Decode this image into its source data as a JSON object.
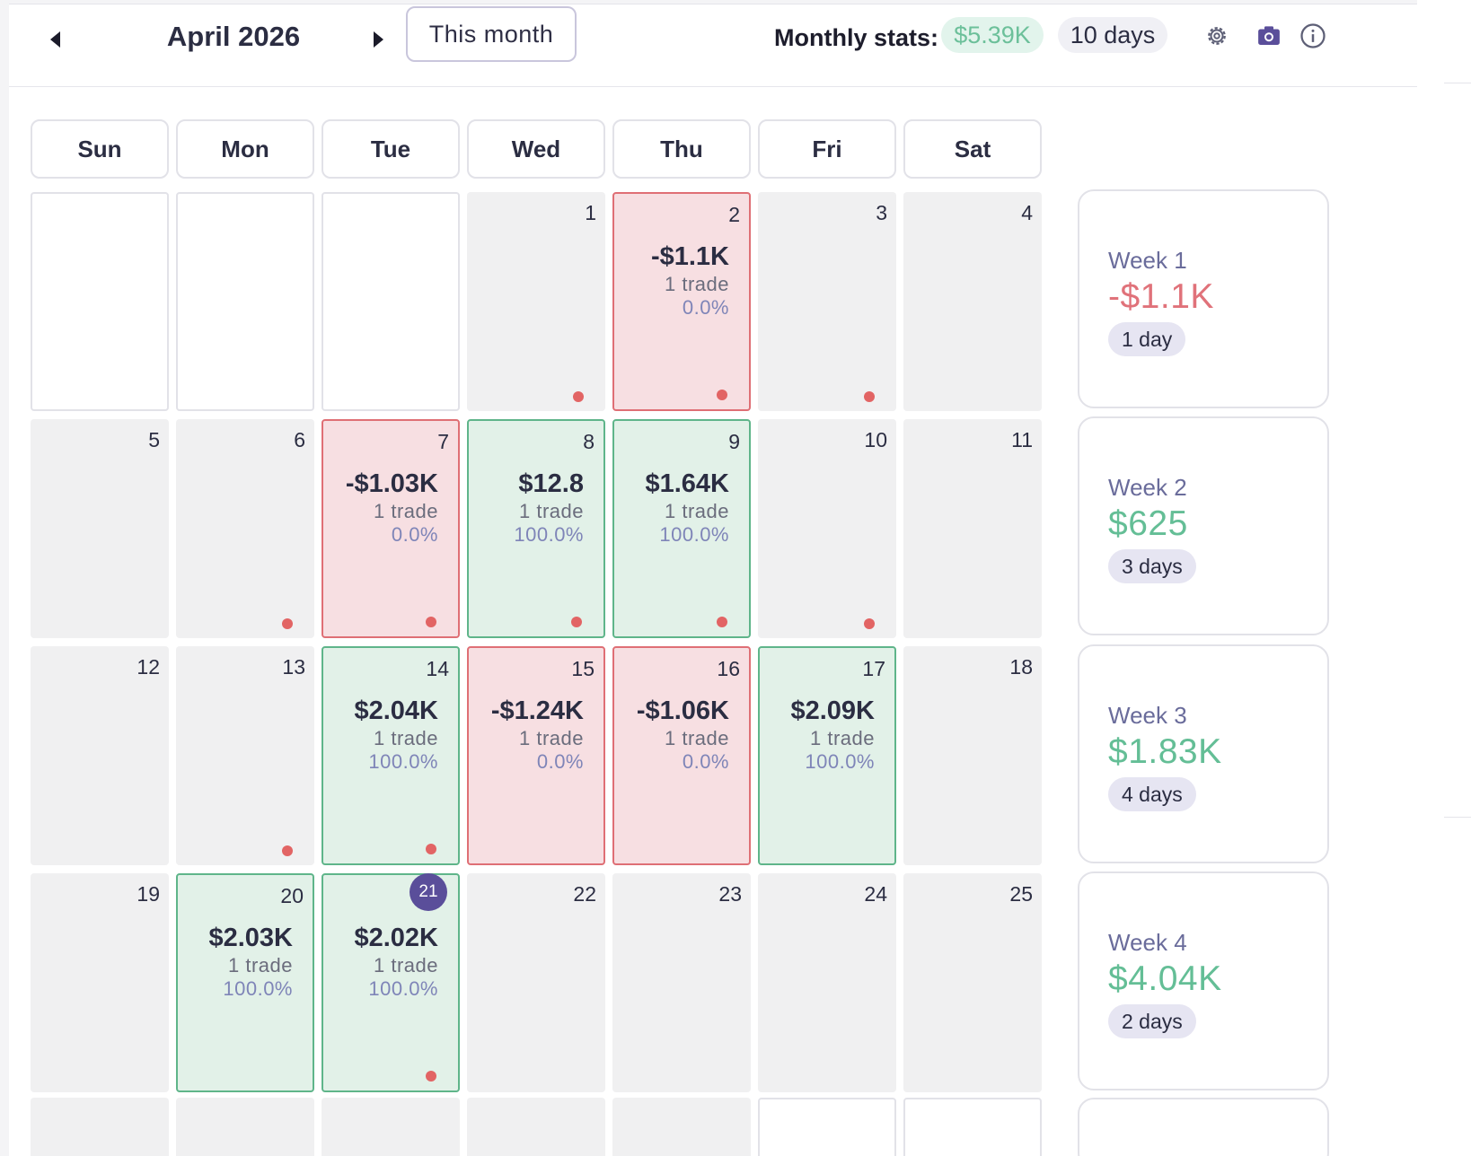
{
  "header": {
    "month_title": "April 2026",
    "this_month_label": "This month",
    "stats_label": "Monthly stats:",
    "stats_amount": "$5.39K",
    "stats_days": "10 days",
    "icons": [
      "chevron-left-icon",
      "chevron-right-icon",
      "gear-icon",
      "camera-icon",
      "info-icon"
    ]
  },
  "weekdays": [
    "Sun",
    "Mon",
    "Tue",
    "Wed",
    "Thu",
    "Fri",
    "Sat"
  ],
  "colors": {
    "loss_bg": "#f7dfe2",
    "loss_border": "#df6f75",
    "win_bg": "#e2f1e8",
    "win_border": "#5fb58a",
    "today": "#5a4e9a",
    "dot": "#e26464",
    "positive_text": "#64be96",
    "negative_text": "#e0727a"
  },
  "weeks": [
    {
      "label": "Week 1",
      "total": "-$1.1K",
      "sign": "neg",
      "days": "1 day",
      "cells": [
        {
          "type": "empty"
        },
        {
          "type": "empty"
        },
        {
          "type": "empty"
        },
        {
          "type": "none",
          "num": "1",
          "dot": true
        },
        {
          "type": "loss",
          "num": "2",
          "pnl": "-$1.1K",
          "trades": "1 trade",
          "winrate": "0.0%",
          "dot": true
        },
        {
          "type": "none",
          "num": "3",
          "dot": true
        },
        {
          "type": "none",
          "num": "4"
        }
      ]
    },
    {
      "label": "Week 2",
      "total": "$625",
      "sign": "pos",
      "days": "3 days",
      "cells": [
        {
          "type": "none",
          "num": "5"
        },
        {
          "type": "none",
          "num": "6",
          "dot": true
        },
        {
          "type": "loss",
          "num": "7",
          "pnl": "-$1.03K",
          "trades": "1 trade",
          "winrate": "0.0%",
          "dot": true
        },
        {
          "type": "win",
          "num": "8",
          "pnl": "$12.8",
          "trades": "1 trade",
          "winrate": "100.0%",
          "dot": true
        },
        {
          "type": "win",
          "num": "9",
          "pnl": "$1.64K",
          "trades": "1 trade",
          "winrate": "100.0%",
          "dot": true
        },
        {
          "type": "none",
          "num": "10",
          "dot": true
        },
        {
          "type": "none",
          "num": "11"
        }
      ]
    },
    {
      "label": "Week 3",
      "total": "$1.83K",
      "sign": "pos",
      "days": "4 days",
      "cells": [
        {
          "type": "none",
          "num": "12"
        },
        {
          "type": "none",
          "num": "13",
          "dot": true
        },
        {
          "type": "win",
          "num": "14",
          "pnl": "$2.04K",
          "trades": "1 trade",
          "winrate": "100.0%",
          "dot": true
        },
        {
          "type": "loss",
          "num": "15",
          "pnl": "-$1.24K",
          "trades": "1 trade",
          "winrate": "0.0%"
        },
        {
          "type": "loss",
          "num": "16",
          "pnl": "-$1.06K",
          "trades": "1 trade",
          "winrate": "0.0%"
        },
        {
          "type": "win",
          "num": "17",
          "pnl": "$2.09K",
          "trades": "1 trade",
          "winrate": "100.0%"
        },
        {
          "type": "none",
          "num": "18"
        }
      ]
    },
    {
      "label": "Week 4",
      "total": "$4.04K",
      "sign": "pos",
      "days": "2 days",
      "cells": [
        {
          "type": "none",
          "num": "19"
        },
        {
          "type": "win",
          "num": "20",
          "pnl": "$2.03K",
          "trades": "1 trade",
          "winrate": "100.0%"
        },
        {
          "type": "win",
          "num": "21",
          "today": true,
          "pnl": "$2.02K",
          "trades": "1 trade",
          "winrate": "100.0%",
          "dot": true
        },
        {
          "type": "none",
          "num": "22"
        },
        {
          "type": "none",
          "num": "23"
        },
        {
          "type": "none",
          "num": "24"
        },
        {
          "type": "none",
          "num": "25"
        }
      ]
    }
  ],
  "partial_row": [
    "none",
    "none",
    "none",
    "none",
    "none",
    "empty",
    "empty"
  ]
}
